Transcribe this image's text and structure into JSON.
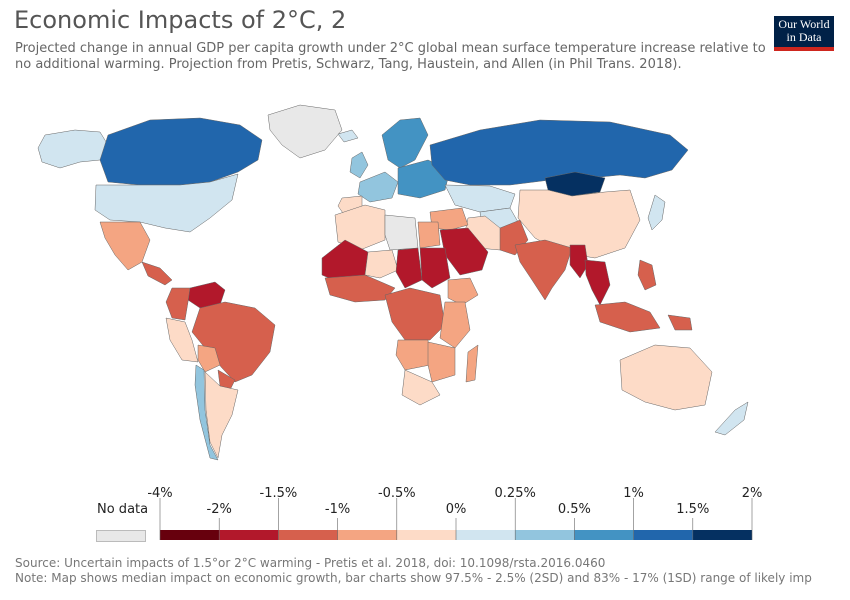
{
  "title": "Economic Impacts of 2°C, 2",
  "subtitle_line1": "Projected change in annual GDP per capita growth under 2°C global mean surface temperature increase relative to",
  "subtitle_line2": "no additional warming. Projection from Pretis, Schwarz, Tang, Haustein, and Allen (in Phil Trans. 2018).",
  "logo_line1": "Our World",
  "logo_line2": "in Data",
  "legend": {
    "nodata_label": "No data",
    "labels_top": [
      "-4%",
      "-1.5%",
      "-0.5%",
      "0.25%",
      "1%",
      "2%"
    ],
    "labels_bottom": [
      "-2%",
      "-1%",
      "0%",
      "0.5%",
      "1.5%"
    ],
    "breaks": [
      "-4%",
      "-2%",
      "-1.5%",
      "-1%",
      "-0.5%",
      "0%",
      "0.25%",
      "0.5%",
      "1%",
      "1.5%",
      "2%"
    ],
    "colors": [
      "#67000d",
      "#b2182b",
      "#d6604d",
      "#f4a582",
      "#fddbc7",
      "#d1e5f0",
      "#92c5de",
      "#4393c3",
      "#2166ac",
      "#053061"
    ],
    "nodata_color": "#e8e8e8"
  },
  "footer_line1": "Source: Uncertain impacts of 1.5°or 2°C warming - Pretis et al. 2018, doi: 10.1098/rsta.2016.0460",
  "footer_line2": "Note: Map shows median impact on economic growth, bar charts show 97.5% - 2.5% (2SD) and 83% - 17% (1SD) range of likely imp",
  "regions": [
    {
      "name": "Canada",
      "color": "#2166ac"
    },
    {
      "name": "Alaska",
      "color": "#d1e5f0"
    },
    {
      "name": "Greenland",
      "color": "#e8e8e8"
    },
    {
      "name": "United States",
      "color": "#d1e5f0"
    },
    {
      "name": "Mexico",
      "color": "#f4a582"
    },
    {
      "name": "Central America",
      "color": "#d6604d"
    },
    {
      "name": "Venezuela",
      "color": "#b2182b"
    },
    {
      "name": "Colombia",
      "color": "#d6604d"
    },
    {
      "name": "Peru",
      "color": "#fddbc7"
    },
    {
      "name": "Brazil",
      "color": "#d6604d"
    },
    {
      "name": "Bolivia",
      "color": "#f4a582"
    },
    {
      "name": "Paraguay",
      "color": "#d6604d"
    },
    {
      "name": "Chile",
      "color": "#92c5de"
    },
    {
      "name": "Argentina",
      "color": "#fddbc7"
    },
    {
      "name": "Iceland",
      "color": "#d1e5f0"
    },
    {
      "name": "Scandinavia",
      "color": "#4393c3"
    },
    {
      "name": "United Kingdom",
      "color": "#92c5de"
    },
    {
      "name": "Western Europe",
      "color": "#92c5de"
    },
    {
      "name": "Eastern Europe",
      "color": "#4393c3"
    },
    {
      "name": "Iberia",
      "color": "#fddbc7"
    },
    {
      "name": "Russia",
      "color": "#2166ac"
    },
    {
      "name": "Mongolia",
      "color": "#053061"
    },
    {
      "name": "Kazakhstan",
      "color": "#d1e5f0"
    },
    {
      "name": "China",
      "color": "#fddbc7"
    },
    {
      "name": "Japan",
      "color": "#d1e5f0"
    },
    {
      "name": "North Africa West",
      "color": "#fddbc7"
    },
    {
      "name": "Libya",
      "color": "#e8e8e8"
    },
    {
      "name": "Egypt",
      "color": "#f4a582"
    },
    {
      "name": "Middle East",
      "color": "#f4a582"
    },
    {
      "name": "Saudi Arabia",
      "color": "#b2182b"
    },
    {
      "name": "Iran",
      "color": "#fddbc7"
    },
    {
      "name": "Central Asia",
      "color": "#d1e5f0"
    },
    {
      "name": "Pakistan",
      "color": "#d6604d"
    },
    {
      "name": "India",
      "color": "#d6604d"
    },
    {
      "name": "Myanmar",
      "color": "#b2182b"
    },
    {
      "name": "Thailand",
      "color": "#b2182b"
    },
    {
      "name": "Mali",
      "color": "#b2182b"
    },
    {
      "name": "Niger",
      "color": "#fddbc7"
    },
    {
      "name": "Chad",
      "color": "#b2182b"
    },
    {
      "name": "Sudan",
      "color": "#b2182b"
    },
    {
      "name": "West Africa",
      "color": "#d6604d"
    },
    {
      "name": "Central Africa",
      "color": "#d6604d"
    },
    {
      "name": "Ethiopia",
      "color": "#f4a582"
    },
    {
      "name": "East Africa",
      "color": "#f4a582"
    },
    {
      "name": "Angola",
      "color": "#f4a582"
    },
    {
      "name": "Southern Africa",
      "color": "#f4a582"
    },
    {
      "name": "South Africa",
      "color": "#fddbc7"
    },
    {
      "name": "Madagascar",
      "color": "#f4a582"
    },
    {
      "name": "Indonesia",
      "color": "#d6604d"
    },
    {
      "name": "Philippines",
      "color": "#d6604d"
    },
    {
      "name": "Papua New Guinea",
      "color": "#d6604d"
    },
    {
      "name": "Australia",
      "color": "#fddbc7"
    },
    {
      "name": "New Zealand",
      "color": "#d1e5f0"
    }
  ]
}
